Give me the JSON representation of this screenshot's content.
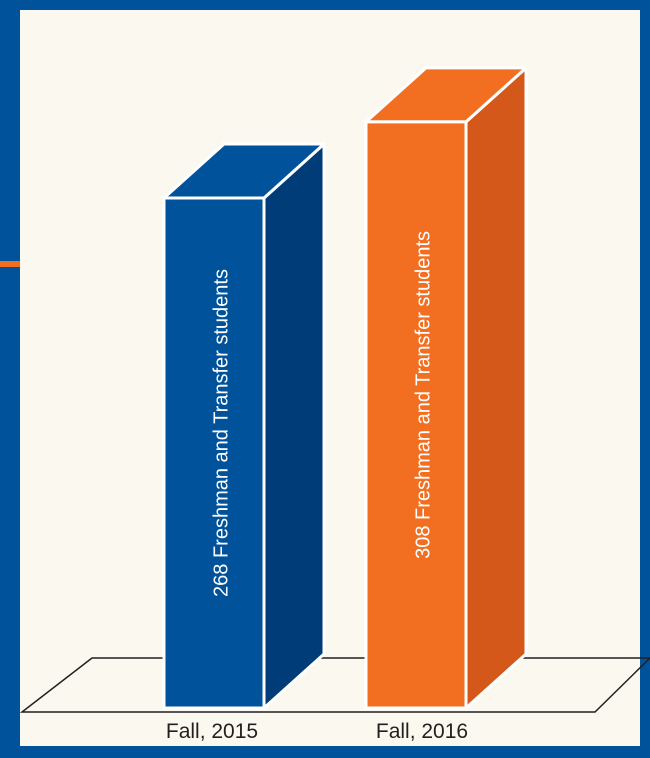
{
  "colors": {
    "frame": "#00539b",
    "background": "#fbf8ef",
    "accent_stripe": "#f26f21",
    "bar_blue": "#00539b",
    "bar_blue_side": "#003d78",
    "bar_orange": "#f26f21",
    "bar_orange_side": "#d4581a",
    "floor_line": "#231f20"
  },
  "chart_data": {
    "type": "bar",
    "style": "3d-column",
    "title": "",
    "xlabel": "",
    "ylabel": "",
    "categories": [
      "Fall, 2015",
      "Fall, 2016"
    ],
    "values": [
      268,
      308
    ],
    "bar_labels": [
      "268 Freshman and Transfer students",
      "308 Freshman and Transfer students"
    ],
    "bar_colors": [
      "#00539b",
      "#f26f21"
    ],
    "ylim": [
      0,
      330
    ],
    "grid": false,
    "legend": "none"
  }
}
